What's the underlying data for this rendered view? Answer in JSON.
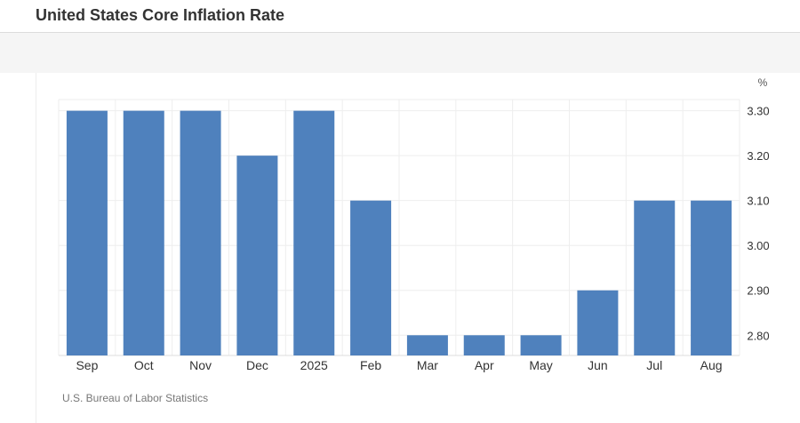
{
  "header": {
    "title": "United States Core Inflation Rate"
  },
  "footer": {
    "source": "U.S. Bureau of Labor Statistics"
  },
  "colors": {
    "bar": "#4f81bd",
    "grid": "#eeeeee",
    "axis_text": "#333333"
  },
  "chart_data": {
    "type": "bar",
    "title": "United States Core Inflation Rate",
    "unit_label": "%",
    "categories": [
      "Sep",
      "Oct",
      "Nov",
      "Dec",
      "2025",
      "Feb",
      "Mar",
      "Apr",
      "May",
      "Jun",
      "Jul",
      "Aug"
    ],
    "values": [
      3.3,
      3.3,
      3.3,
      3.2,
      3.3,
      3.1,
      2.8,
      2.8,
      2.8,
      2.9,
      3.1,
      3.1
    ],
    "y_ticks": [
      "3.30",
      "3.20",
      "3.10",
      "3.00",
      "2.90",
      "2.80"
    ],
    "ylim": [
      2.755,
      3.325
    ],
    "y_axis_position": "right",
    "grid": true,
    "legend": "none"
  }
}
